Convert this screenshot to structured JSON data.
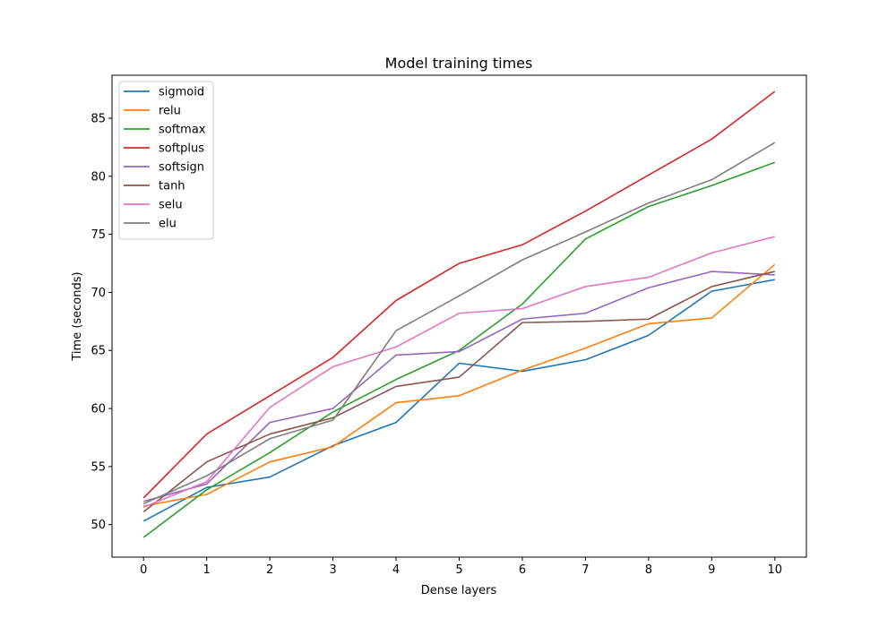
{
  "chart_data": {
    "type": "line",
    "title": "Model training times",
    "xlabel": "Dense layers",
    "ylabel": "Time (seconds)",
    "x": [
      0,
      1,
      2,
      3,
      4,
      5,
      6,
      7,
      8,
      9,
      10
    ],
    "xlim": [
      -0.5,
      10.5
    ],
    "ylim": [
      47.2,
      88.7
    ],
    "xticks": [
      "0",
      "1",
      "2",
      "3",
      "4",
      "5",
      "6",
      "7",
      "8",
      "9",
      "10"
    ],
    "yticks": [
      "50",
      "55",
      "60",
      "65",
      "70",
      "75",
      "80",
      "85"
    ],
    "grid": false,
    "legend_position": "top-left",
    "series": [
      {
        "name": "sigmoid",
        "color": "#1f77b4",
        "values": [
          50.3,
          53.2,
          54.1,
          56.8,
          58.8,
          63.9,
          63.2,
          64.2,
          66.3,
          70.1,
          71.1
        ]
      },
      {
        "name": "relu",
        "color": "#ff7f0e",
        "values": [
          51.6,
          52.6,
          55.4,
          56.7,
          60.5,
          61.1,
          63.3,
          65.2,
          67.3,
          67.8,
          72.4
        ]
      },
      {
        "name": "softmax",
        "color": "#2ca02c",
        "values": [
          48.9,
          53.0,
          56.2,
          59.7,
          62.5,
          65.0,
          69.0,
          74.6,
          77.4,
          79.2,
          81.2
        ]
      },
      {
        "name": "softplus",
        "color": "#d62728",
        "values": [
          52.3,
          57.8,
          61.1,
          64.4,
          69.3,
          72.5,
          74.1,
          77.0,
          80.1,
          83.2,
          87.3
        ]
      },
      {
        "name": "softsign",
        "color": "#9467bd",
        "values": [
          52.0,
          53.5,
          58.8,
          60.0,
          64.6,
          64.9,
          67.7,
          68.2,
          70.4,
          71.8,
          71.5
        ]
      },
      {
        "name": "tanh",
        "color": "#8c564b",
        "values": [
          51.1,
          55.4,
          57.8,
          59.2,
          61.9,
          62.7,
          67.4,
          67.5,
          67.7,
          70.5,
          71.8
        ]
      },
      {
        "name": "selu",
        "color": "#e377c2",
        "values": [
          51.5,
          53.7,
          60.1,
          63.6,
          65.3,
          68.2,
          68.6,
          70.5,
          71.3,
          73.4,
          74.8
        ]
      },
      {
        "name": "elu",
        "color": "#7f7f7f",
        "values": [
          51.8,
          54.2,
          57.4,
          59.0,
          66.7,
          69.7,
          72.8,
          75.2,
          77.7,
          79.7,
          82.9
        ]
      }
    ]
  }
}
